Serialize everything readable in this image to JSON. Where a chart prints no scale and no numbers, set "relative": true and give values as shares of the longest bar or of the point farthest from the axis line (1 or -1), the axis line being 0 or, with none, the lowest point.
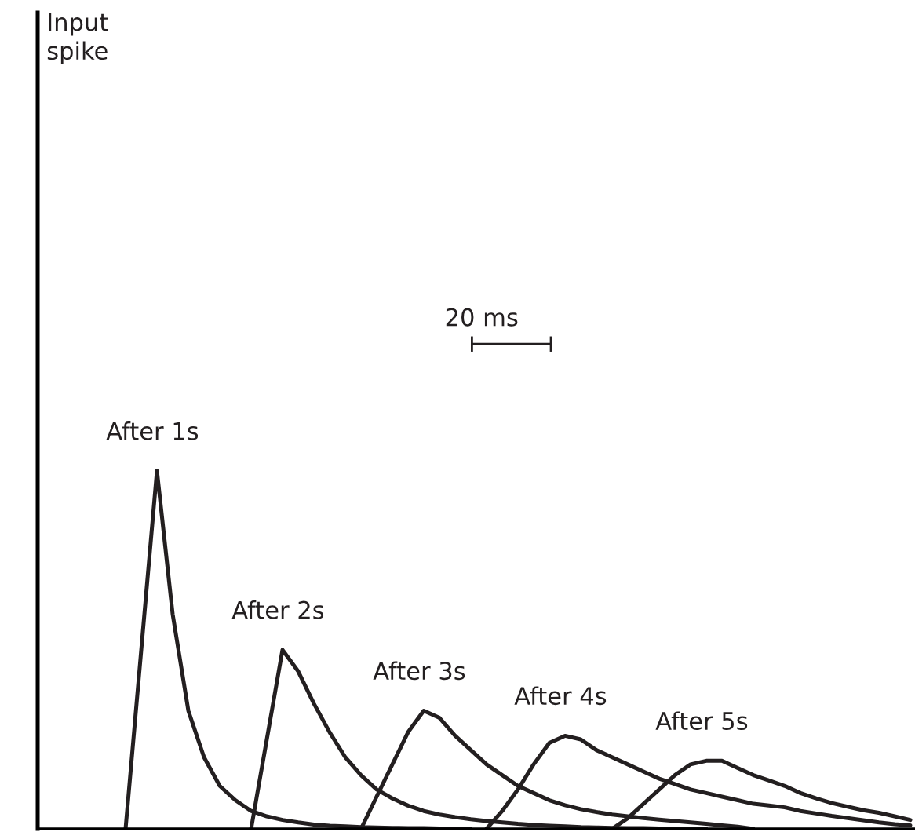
{
  "chart_data": {
    "type": "line",
    "relative": true,
    "annotations": [
      "Input\nspike",
      "20 ms"
    ],
    "categories": [
      null,
      null,
      null,
      null,
      null,
      null,
      null,
      null,
      null,
      null,
      null,
      null,
      null,
      null,
      null,
      null,
      null,
      null,
      null,
      null,
      null,
      null,
      null,
      null,
      null,
      null,
      null,
      null,
      null,
      null,
      null,
      null,
      null,
      null,
      null,
      null,
      null,
      null,
      null,
      null,
      null,
      null,
      null,
      null,
      null,
      null,
      null,
      null,
      null,
      null,
      null,
      null,
      null,
      null,
      null,
      null
    ],
    "series": [
      {
        "name": "After 1s",
        "color": "#231f20",
        "values": [
          null,
          null,
          null,
          null,
          null,
          0,
          0.5,
          1,
          0.6,
          0.33,
          0.2,
          0.12,
          0.08,
          0.05,
          0.035,
          0.025,
          0.018,
          0.012,
          0.009,
          0.007,
          0.005,
          0.004,
          0.003,
          0.002,
          0.002,
          0.001,
          0.001,
          0,
          null,
          null,
          null,
          null,
          null,
          null,
          null,
          null,
          null,
          null,
          null,
          null,
          null,
          null,
          null,
          null,
          null,
          null,
          null,
          null,
          null,
          null,
          null,
          null,
          null,
          null,
          null,
          null
        ]
      },
      {
        "name": "After 2s",
        "color": "#231f20",
        "values": [
          null,
          null,
          null,
          null,
          null,
          null,
          null,
          null,
          null,
          null,
          null,
          null,
          null,
          0,
          0.25,
          0.5,
          0.44,
          0.35,
          0.27,
          0.2,
          0.15,
          0.11,
          0.085,
          0.065,
          0.05,
          0.04,
          0.033,
          0.027,
          0.022,
          0.018,
          0.014,
          0.011,
          0.009,
          0.007,
          0.005,
          0.004,
          0.003,
          0.002,
          0.002,
          0.001,
          0.001,
          0.001,
          0,
          null,
          null,
          null,
          null,
          null,
          null,
          null,
          null,
          null,
          null,
          null,
          null,
          null
        ]
      },
      {
        "name": "After 3s",
        "color": "#231f20",
        "values": [
          null,
          null,
          null,
          null,
          null,
          null,
          null,
          null,
          null,
          null,
          null,
          null,
          null,
          null,
          null,
          null,
          null,
          null,
          null,
          null,
          0,
          0.09,
          0.18,
          0.27,
          0.33,
          0.31,
          0.26,
          0.22,
          0.18,
          0.15,
          0.12,
          0.1,
          0.08,
          0.066,
          0.055,
          0.047,
          0.04,
          0.035,
          0.03,
          0.026,
          0.022,
          0.018,
          0.014,
          0.01,
          0.006,
          0,
          null,
          null,
          null,
          null,
          null,
          null,
          null,
          null,
          null,
          null
        ]
      },
      {
        "name": "After 4s",
        "color": "#231f20",
        "values": [
          null,
          null,
          null,
          null,
          null,
          null,
          null,
          null,
          null,
          null,
          null,
          null,
          null,
          null,
          null,
          null,
          null,
          null,
          null,
          null,
          null,
          null,
          null,
          null,
          null,
          null,
          null,
          null,
          0,
          0.05,
          0.11,
          0.18,
          0.24,
          0.26,
          0.25,
          0.22,
          0.2,
          0.18,
          0.16,
          0.14,
          0.125,
          0.11,
          0.1,
          0.09,
          0.08,
          0.07,
          0.065,
          0.06,
          0.05,
          0.043,
          0.036,
          0.03,
          0.024,
          0.018,
          0.013,
          0.01
        ]
      },
      {
        "name": "After 5s",
        "color": "#231f20",
        "values": [
          null,
          null,
          null,
          null,
          null,
          null,
          null,
          null,
          null,
          null,
          null,
          null,
          null,
          null,
          null,
          null,
          null,
          null,
          null,
          null,
          null,
          null,
          null,
          null,
          null,
          null,
          null,
          null,
          null,
          null,
          null,
          null,
          null,
          null,
          null,
          null,
          0,
          0.03,
          0.07,
          0.11,
          0.15,
          0.18,
          0.19,
          0.19,
          0.17,
          0.15,
          0.135,
          0.12,
          0.1,
          0.085,
          0.072,
          0.062,
          0.052,
          0.045,
          0.035,
          0.025
        ]
      }
    ]
  }
}
